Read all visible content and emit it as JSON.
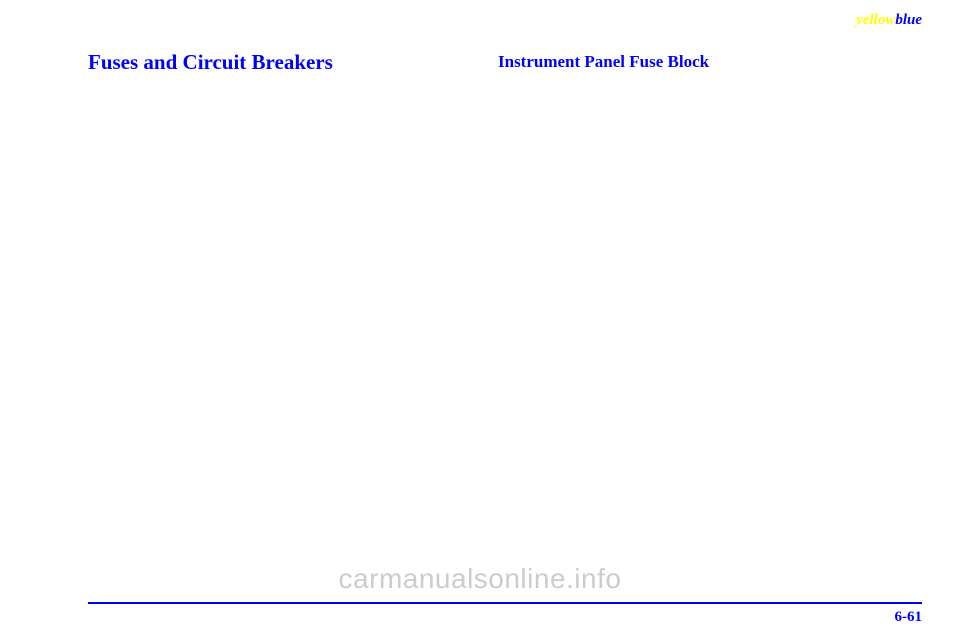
{
  "header": {
    "word1": "yellow",
    "word2": "blue"
  },
  "headings": {
    "main": "Fuses and Circuit Breakers",
    "sub": "Instrument Panel Fuse Block"
  },
  "footer": {
    "page_number": "6-61",
    "watermark": "carmanualsonline.info"
  },
  "colors": {
    "blue": "#0000ff",
    "yellow": "#ffff00",
    "watermark": "#cccccc",
    "background": "#ffffff"
  }
}
